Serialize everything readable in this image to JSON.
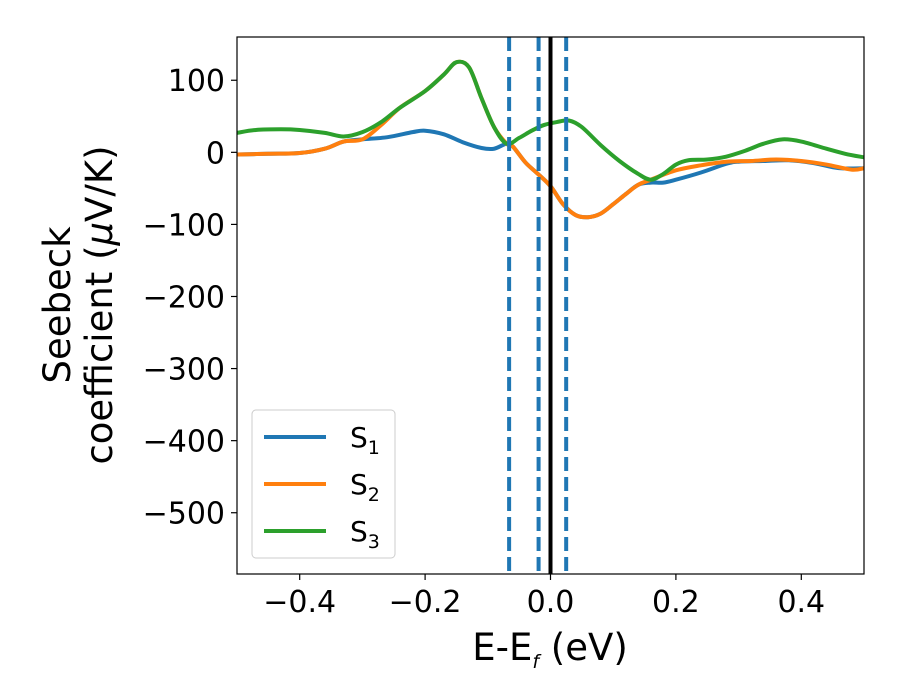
{
  "chart_data": {
    "type": "line",
    "xlabel": {
      "main": "E-E",
      "sub": "f",
      "suffix": " (eV)"
    },
    "ylabel": {
      "line1": "Seebeck",
      "line2_text": "coefficient  (",
      "line2_mu": "μ",
      "line2_unit": "V/K)"
    },
    "xlim": [
      -0.5,
      0.5
    ],
    "ylim": [
      -585,
      160
    ],
    "xticks": [
      -0.4,
      -0.2,
      0.0,
      0.2,
      0.4
    ],
    "xtick_labels": [
      "−0.4",
      "−0.2",
      "0.0",
      "0.2",
      "0.4"
    ],
    "yticks": [
      100,
      0,
      -100,
      -200,
      -300,
      -400,
      -500
    ],
    "ytick_labels": [
      "100",
      "0",
      "−100",
      "−200",
      "−300",
      "−400",
      "−500"
    ],
    "grid": false,
    "legend_position": "lower-left",
    "series": [
      {
        "name": "S",
        "sub": "1",
        "color": "#1f77b4",
        "points": [
          [
            -0.5,
            -3
          ],
          [
            -0.45,
            -2
          ],
          [
            -0.4,
            -1
          ],
          [
            -0.36,
            5
          ],
          [
            -0.33,
            15
          ],
          [
            -0.3,
            18
          ],
          [
            -0.26,
            21
          ],
          [
            -0.22,
            28
          ],
          [
            -0.2,
            30
          ],
          [
            -0.17,
            25
          ],
          [
            -0.14,
            14
          ],
          [
            -0.11,
            6
          ],
          [
            -0.09,
            5
          ],
          [
            -0.07,
            12
          ],
          [
            -0.06,
            8
          ],
          [
            -0.04,
            -14
          ],
          [
            -0.02,
            -30
          ],
          [
            0.0,
            -47
          ],
          [
            0.02,
            -72
          ],
          [
            0.04,
            -87
          ],
          [
            0.06,
            -90
          ],
          [
            0.08,
            -85
          ],
          [
            0.1,
            -72
          ],
          [
            0.12,
            -58
          ],
          [
            0.14,
            -45
          ],
          [
            0.16,
            -42
          ],
          [
            0.18,
            -42
          ],
          [
            0.2,
            -38
          ],
          [
            0.24,
            -28
          ],
          [
            0.28,
            -16
          ],
          [
            0.3,
            -13
          ],
          [
            0.34,
            -12
          ],
          [
            0.38,
            -11
          ],
          [
            0.42,
            -15
          ],
          [
            0.46,
            -22
          ],
          [
            0.5,
            -22
          ]
        ]
      },
      {
        "name": "S",
        "sub": "2",
        "color": "#ff7f0e",
        "points": [
          [
            -0.5,
            -3
          ],
          [
            -0.45,
            -2
          ],
          [
            -0.4,
            -1
          ],
          [
            -0.36,
            5
          ],
          [
            -0.33,
            15
          ],
          [
            -0.3,
            18
          ],
          [
            -0.27,
            38
          ],
          [
            -0.24,
            62
          ],
          [
            -0.2,
            85
          ],
          [
            -0.17,
            108
          ],
          [
            -0.15,
            125
          ],
          [
            -0.13,
            118
          ],
          [
            -0.11,
            75
          ],
          [
            -0.09,
            35
          ],
          [
            -0.07,
            12
          ],
          [
            -0.06,
            8
          ],
          [
            -0.04,
            -14
          ],
          [
            -0.02,
            -30
          ],
          [
            0.0,
            -47
          ],
          [
            0.02,
            -72
          ],
          [
            0.04,
            -87
          ],
          [
            0.06,
            -90
          ],
          [
            0.08,
            -85
          ],
          [
            0.1,
            -72
          ],
          [
            0.12,
            -58
          ],
          [
            0.14,
            -45
          ],
          [
            0.16,
            -38
          ],
          [
            0.2,
            -25
          ],
          [
            0.24,
            -18
          ],
          [
            0.28,
            -13
          ],
          [
            0.32,
            -12
          ],
          [
            0.36,
            -10
          ],
          [
            0.4,
            -12
          ],
          [
            0.44,
            -17
          ],
          [
            0.48,
            -24
          ],
          [
            0.5,
            -22
          ]
        ]
      },
      {
        "name": "S",
        "sub": "3",
        "color": "#2ca02c",
        "points": [
          [
            -0.5,
            27
          ],
          [
            -0.47,
            31
          ],
          [
            -0.43,
            32
          ],
          [
            -0.4,
            31
          ],
          [
            -0.36,
            27
          ],
          [
            -0.33,
            22
          ],
          [
            -0.3,
            28
          ],
          [
            -0.27,
            42
          ],
          [
            -0.24,
            62
          ],
          [
            -0.2,
            85
          ],
          [
            -0.17,
            108
          ],
          [
            -0.15,
            125
          ],
          [
            -0.13,
            118
          ],
          [
            -0.11,
            75
          ],
          [
            -0.09,
            35
          ],
          [
            -0.07,
            12
          ],
          [
            -0.05,
            20
          ],
          [
            -0.03,
            30
          ],
          [
            -0.01,
            38
          ],
          [
            0.01,
            42
          ],
          [
            0.03,
            44
          ],
          [
            0.05,
            35
          ],
          [
            0.08,
            10
          ],
          [
            0.11,
            -12
          ],
          [
            0.14,
            -30
          ],
          [
            0.16,
            -38
          ],
          [
            0.18,
            -30
          ],
          [
            0.2,
            -17
          ],
          [
            0.22,
            -11
          ],
          [
            0.25,
            -10
          ],
          [
            0.28,
            -6
          ],
          [
            0.31,
            2
          ],
          [
            0.34,
            12
          ],
          [
            0.37,
            18
          ],
          [
            0.4,
            15
          ],
          [
            0.44,
            5
          ],
          [
            0.47,
            -2
          ],
          [
            0.5,
            -7
          ]
        ]
      }
    ],
    "vlines": [
      {
        "x": -0.066,
        "style": "dashed",
        "color": "#1f77b4"
      },
      {
        "x": -0.019,
        "style": "dashed",
        "color": "#1f77b4"
      },
      {
        "x": 0.025,
        "style": "dashed",
        "color": "#1f77b4"
      },
      {
        "x": 0.0,
        "style": "solid",
        "color": "#000000"
      }
    ]
  }
}
